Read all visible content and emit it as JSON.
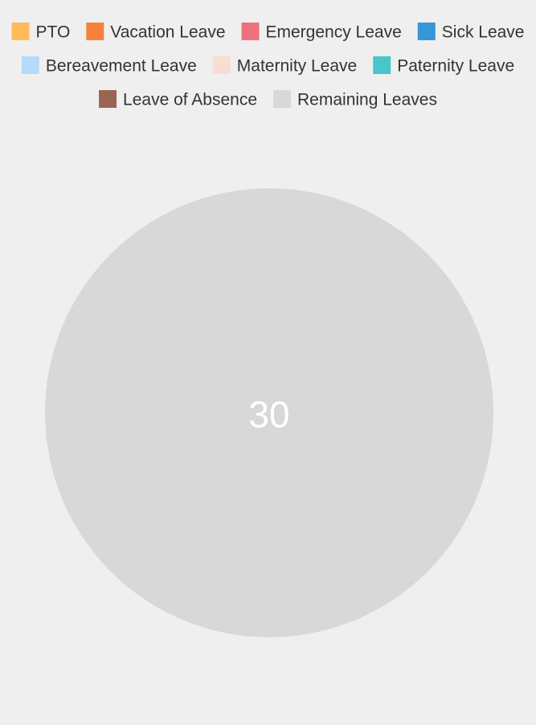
{
  "chart_data": {
    "type": "pie",
    "legend_position": "top",
    "title": "",
    "categories": [
      "PTO",
      "Vacation Leave",
      "Emergency Leave",
      "Sick Leave",
      "Bereavement Leave",
      "Maternity Leave",
      "Paternity Leave",
      "Leave of Absence",
      "Remaining Leaves"
    ],
    "values": [
      0,
      0,
      0,
      0,
      0,
      0,
      0,
      0,
      30
    ],
    "colors": [
      "#ffba5b",
      "#f5833c",
      "#ef717e",
      "#3597d7",
      "#b5dafa",
      "#f9ddd1",
      "#4ac6cb",
      "#9b6451",
      "#d8d8d8"
    ],
    "data_labels": [
      "",
      "",
      "",
      "",
      "",
      "",
      "",
      "",
      "30"
    ],
    "label_color": "#ffffff",
    "legend_text_color": "#333333"
  }
}
